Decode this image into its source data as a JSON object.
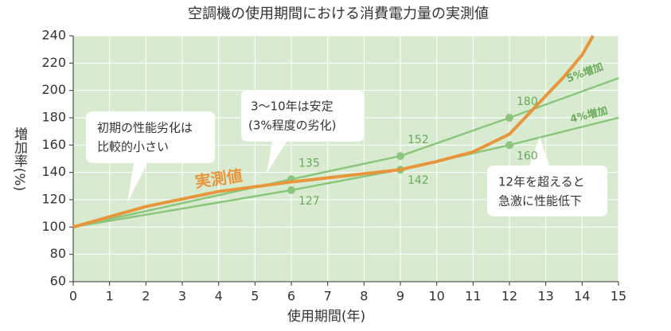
{
  "chart_data": {
    "type": "line",
    "title": "空調機の使用期間における消費電力量の実測値",
    "x_label": "使用期間(年)",
    "y_label": "増加率(%)",
    "xlim": [
      0,
      15
    ],
    "xticks": [
      0,
      1,
      2,
      3,
      4,
      5,
      6,
      7,
      8,
      9,
      10,
      11,
      12,
      13,
      14,
      15
    ],
    "ylim": [
      60,
      240
    ],
    "yticks": [
      60,
      80,
      100,
      120,
      140,
      160,
      180,
      200,
      220,
      240
    ],
    "grid": true,
    "series": [
      {
        "name": "5%増加",
        "color": "#8cc67e",
        "x": [
          0,
          6,
          9,
          12,
          15
        ],
        "values": [
          100,
          135,
          152,
          180,
          209
        ]
      },
      {
        "name": "4%増加",
        "color": "#8cc67e",
        "x": [
          0,
          6,
          9,
          12,
          15
        ],
        "values": [
          100,
          127,
          142,
          160,
          180
        ]
      },
      {
        "name": "実測値",
        "color": "#e8963c",
        "x": [
          0,
          2,
          4,
          6,
          8,
          9,
          10,
          11,
          12,
          13,
          13.5,
          14,
          14.3
        ],
        "values": [
          100,
          115,
          126,
          133,
          139,
          142,
          148,
          155,
          168,
          196,
          210,
          226,
          240
        ]
      }
    ],
    "annotations": [
      [
        "初期の性能劣化は",
        "比較的小さい"
      ],
      [
        "3〜10年は安定",
        "(3%程度の劣化)"
      ],
      [
        "12年を超えると",
        "急激に性能低下"
      ]
    ]
  }
}
